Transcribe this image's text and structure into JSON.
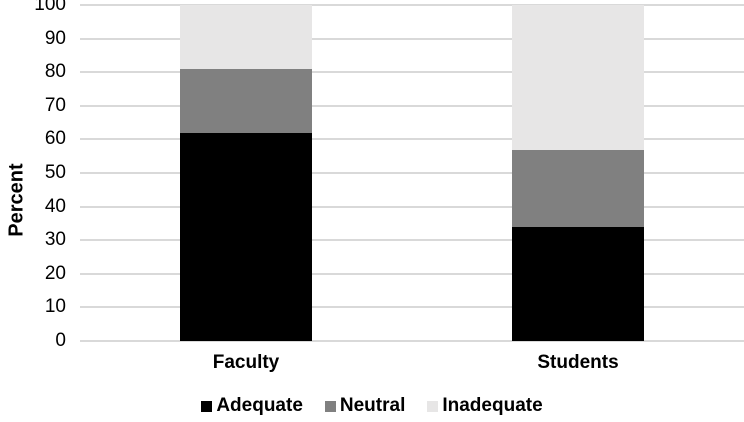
{
  "chart_data": {
    "type": "bar",
    "stacked": true,
    "title": "",
    "xlabel": "",
    "ylabel": "Percent",
    "categories": [
      "Faculty",
      "Students"
    ],
    "series": [
      {
        "name": "Adequate",
        "color": "#000000",
        "values": [
          62,
          34
        ]
      },
      {
        "name": "Neutral",
        "color": "#808080",
        "values": [
          19,
          23
        ]
      },
      {
        "name": "Inadequate",
        "color": "#e7e6e6",
        "values": [
          19,
          43
        ]
      }
    ],
    "ylim": [
      0,
      100
    ],
    "yticks": [
      0,
      10,
      20,
      30,
      40,
      50,
      60,
      70,
      80,
      90,
      100
    ],
    "grid": true,
    "gridline_color": "#d9d9d9",
    "text_color": "#000000",
    "background_color": "#ffffff",
    "legend_position": "bottom"
  }
}
